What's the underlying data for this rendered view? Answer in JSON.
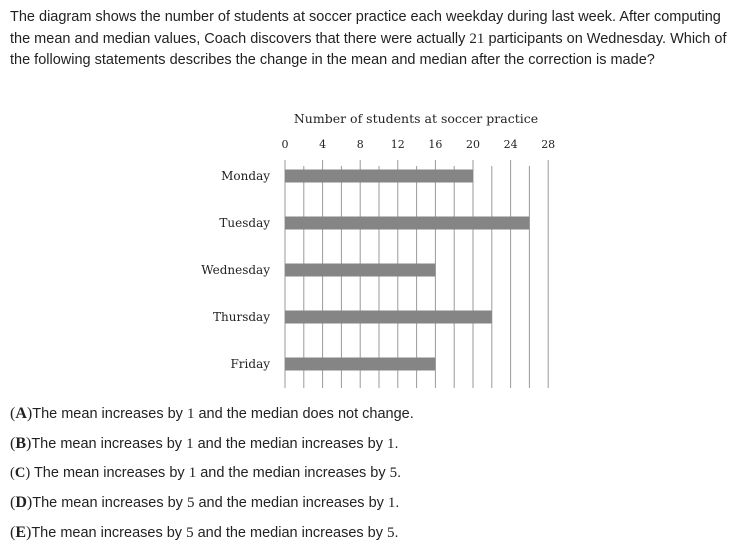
{
  "question": {
    "part1": "The diagram shows the number of students at soccer practice each weekday during last week. After computing the mean and median values, Coach discovers that there were actually ",
    "value": "21",
    "part2": " participants on Wednesday. Which of the following statements describes the change in the mean and median after the correction is made?"
  },
  "chart_data": {
    "type": "bar",
    "orientation": "horizontal",
    "title": "Number of students at soccer practice",
    "categories": [
      "Monday",
      "Tuesday",
      "Wednesday",
      "Thursday",
      "Friday"
    ],
    "values": [
      20,
      26,
      16,
      22,
      16
    ],
    "xticks": [
      "0",
      "4",
      "8",
      "12",
      "16",
      "20",
      "24",
      "28"
    ],
    "xlim": [
      0,
      28
    ],
    "grid": "vertical lines at every 2 units",
    "bar_color": "#858585"
  },
  "choices": [
    {
      "open": "(",
      "letter": "A",
      "close": ")",
      "t1": "The mean increases by ",
      "n1": "1",
      "t2": " and the median does not change.",
      "n2": "",
      "t3": ""
    },
    {
      "open": "(",
      "letter": "B",
      "close": ")",
      "t1": "The mean increases by ",
      "n1": "1",
      "t2": " and the median increases by ",
      "n2": "1",
      "t3": "."
    },
    {
      "open": "(",
      "letter": "C",
      "close": ")",
      "t1": " The mean increases by ",
      "n1": "1",
      "t2": " and the median increases by ",
      "n2": "5",
      "t3": "."
    },
    {
      "open": "(",
      "letter": "D",
      "close": ")",
      "t1": "The mean increases by ",
      "n1": "5",
      "t2": " and the median increases by ",
      "n2": "1",
      "t3": "."
    },
    {
      "open": "(",
      "letter": "E",
      "close": ")",
      "t1": "The mean increases by ",
      "n1": "5",
      "t2": " and the median increases by ",
      "n2": "5",
      "t3": "."
    }
  ]
}
